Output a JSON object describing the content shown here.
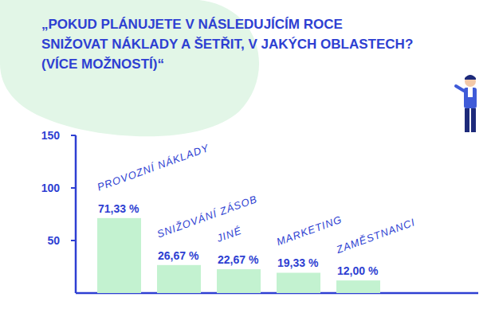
{
  "chart_data": {
    "type": "bar",
    "title": "„POKUD PLÁNUJETE V NÁSLEDUJÍCÍM ROCE\nSNIŽOVAT NÁKLADY A ŠETŘIT, V JAKÝCH OBLASTECH?\n(VÍCE MOŽNOSTÍ)“",
    "categories": [
      "PROVOZNÍ NÁKLADY",
      "SNIŽOVÁNÍ ZÁSOB",
      "JINÉ",
      "MARKETING",
      "ZAMĚSTNANCI"
    ],
    "values": [
      71.33,
      26.67,
      22.67,
      19.33,
      12.0
    ],
    "value_labels": [
      "71,33 %",
      "26,67 %",
      "22,67 %",
      "19,33 %",
      "12,00 %"
    ],
    "color": "#c3f2d0",
    "ylim": [
      0,
      150
    ],
    "yticks": [
      50,
      100,
      150
    ],
    "grid": false,
    "data_labels": true
  }
}
